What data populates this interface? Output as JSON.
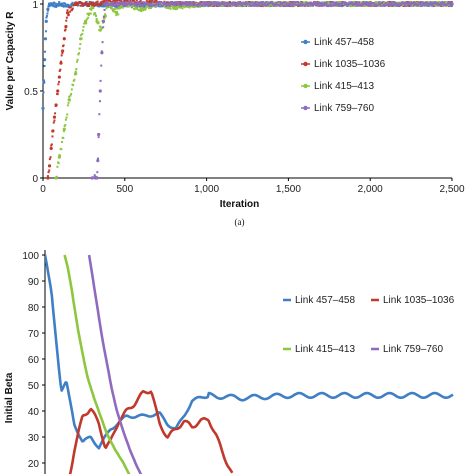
{
  "chart_data": [
    {
      "type": "scatter",
      "panel": "(a)",
      "xlabel": "Iteration",
      "ylabel": "Value per Capacity R",
      "xlim": [
        0,
        2500
      ],
      "ylim": [
        0,
        1
      ],
      "xticks": [
        "0",
        "500",
        "1,000",
        "1,500",
        "2,000",
        "2,500"
      ],
      "xtick_values": [
        0,
        500,
        1000,
        1500,
        2000,
        2500
      ],
      "yticks": [
        "0",
        "0.5",
        "1"
      ],
      "ytick_values": [
        0,
        0.5,
        1
      ],
      "legend_position": "right",
      "series": [
        {
          "name": "Link 457–458",
          "color": "#3f7fc6",
          "x": [
            0,
            5,
            10,
            15,
            20,
            30,
            40,
            60,
            80,
            100,
            150,
            200,
            300,
            500,
            800,
            1200,
            1600,
            2000,
            2500
          ],
          "y": [
            0.4,
            0.55,
            0.68,
            0.8,
            0.9,
            0.97,
            1.0,
            1.0,
            0.99,
            1.0,
            0.99,
            1.0,
            1.0,
            0.99,
            1.0,
            1.0,
            1.0,
            1.0,
            1.0
          ]
        },
        {
          "name": "Link 1035–1036",
          "color": "#c0392b",
          "x": [
            30,
            40,
            50,
            60,
            70,
            80,
            90,
            100,
            110,
            120,
            130,
            140,
            150,
            200,
            300,
            500,
            800,
            1200,
            1600,
            2000,
            2500
          ],
          "y": [
            0.0,
            0.07,
            0.17,
            0.27,
            0.35,
            0.42,
            0.5,
            0.58,
            0.66,
            0.73,
            0.8,
            0.87,
            0.95,
            1.0,
            1.0,
            1.02,
            1.0,
            1.0,
            1.0,
            1.0,
            1.0
          ]
        },
        {
          "name": "Link 415–413",
          "color": "#8dc63f",
          "x": [
            80,
            100,
            130,
            160,
            200,
            230,
            260,
            300,
            330,
            350,
            380,
            400,
            450,
            500,
            600,
            700,
            800,
            1000,
            1200,
            1500,
            2000,
            2500
          ],
          "y": [
            0.0,
            0.12,
            0.28,
            0.45,
            0.6,
            0.8,
            0.9,
            0.98,
            0.9,
            0.85,
            0.93,
            1.0,
            0.95,
            1.0,
            0.97,
            1.0,
            0.98,
            1.0,
            1.0,
            1.0,
            1.0,
            1.0
          ]
        },
        {
          "name": "Link 759–760",
          "color": "#8e6bbf",
          "x": [
            300,
            320,
            330,
            335,
            340,
            350,
            360,
            370,
            380,
            400,
            500,
            700,
            1000,
            1500,
            2000,
            2500
          ],
          "y": [
            0.0,
            0.0,
            0.0,
            0.1,
            0.25,
            0.5,
            0.72,
            0.9,
            1.0,
            1.0,
            1.0,
            1.0,
            1.0,
            1.0,
            1.0,
            1.0
          ]
        }
      ]
    },
    {
      "type": "line",
      "ylabel": "Initial Beta",
      "ylim": [
        20,
        100
      ],
      "yticks": [
        "100",
        "90",
        "80",
        "70",
        "60",
        "50",
        "40",
        "30",
        "20"
      ],
      "ytick_values": [
        100,
        90,
        80,
        70,
        60,
        50,
        40,
        30,
        20
      ],
      "xlim": [
        0,
        2500
      ],
      "legend_position": "right",
      "series": [
        {
          "name": "Link 457–458",
          "color": "#3f7fc6",
          "x": [
            0,
            40,
            80,
            100,
            130,
            180,
            230,
            280,
            330,
            400,
            500,
            600,
            700,
            750,
            800,
            850,
            900,
            1000,
            1200,
            1500,
            2000,
            2500
          ],
          "y": [
            100,
            85,
            60,
            48,
            51,
            35,
            28,
            30,
            26,
            33,
            38,
            38,
            39,
            35,
            33,
            38,
            44,
            46,
            45,
            46,
            46,
            46
          ]
        },
        {
          "name": "Link 1035–1036",
          "color": "#c0392b",
          "x": [
            150,
            180,
            230,
            280,
            330,
            370,
            400,
            450,
            500,
            550,
            600,
            650,
            700,
            750,
            800,
            850,
            900,
            950,
            1000,
            1050,
            1100,
            1150
          ],
          "y": [
            15,
            25,
            38,
            41,
            35,
            26,
            28,
            36,
            40,
            43,
            47,
            48,
            35,
            30,
            33,
            36,
            34,
            36,
            37,
            30,
            22,
            15
          ]
        },
        {
          "name": "Link 415–413",
          "color": "#8dc63f",
          "x": [
            120,
            140,
            160,
            180,
            200,
            230,
            260,
            300,
            340,
            380,
            430,
            480,
            520
          ],
          "y": [
            100,
            95,
            88,
            80,
            72,
            62,
            53,
            45,
            38,
            31,
            25,
            20,
            15
          ]
        },
        {
          "name": "Link 759–760",
          "color": "#8e6bbf",
          "x": [
            270,
            290,
            310,
            330,
            350,
            380,
            410,
            440,
            480,
            520,
            560,
            600
          ],
          "y": [
            100,
            92,
            84,
            76,
            68,
            58,
            48,
            40,
            32,
            25,
            19,
            14
          ]
        }
      ]
    }
  ]
}
